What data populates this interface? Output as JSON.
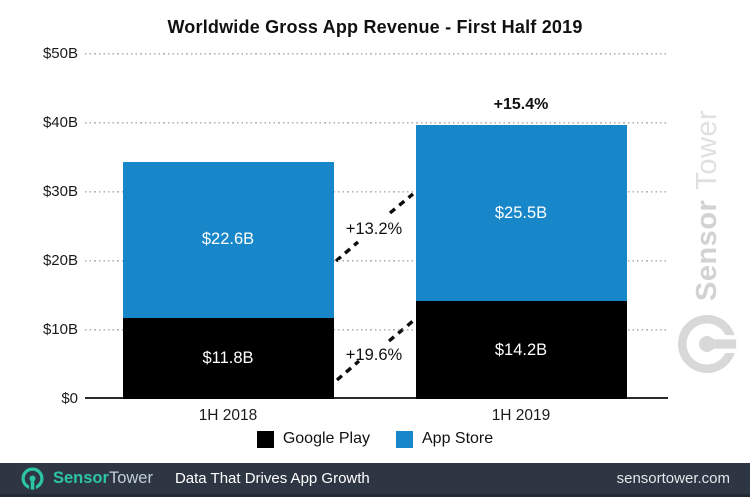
{
  "title": "Worldwide Gross App Revenue - First Half 2019",
  "chart_data": {
    "type": "bar",
    "stacked": true,
    "title": "Worldwide Gross App Revenue - First Half 2019",
    "categories": [
      "1H 2018",
      "1H 2019"
    ],
    "series": [
      {
        "name": "Google Play",
        "color": "#000000",
        "values": [
          11.8,
          14.2
        ],
        "labels": [
          "$11.8B",
          "$14.2B"
        ]
      },
      {
        "name": "App Store",
        "color": "#1787c9",
        "values": [
          22.6,
          25.5
        ],
        "labels": [
          "$22.6B",
          "$25.5B"
        ]
      }
    ],
    "totals": [
      34.4,
      39.7
    ],
    "total_growth_label": "+15.4%",
    "segment_growth_labels": [
      {
        "series": "App Store",
        "label": "+13.2%"
      },
      {
        "series": "Google Play",
        "label": "+19.6%"
      }
    ],
    "y_ticks": [
      "$50B",
      "$40B",
      "$30B",
      "$20B",
      "$10B",
      "$0"
    ],
    "y_tick_values": [
      50,
      40,
      30,
      20,
      10,
      0
    ],
    "ylim": [
      0,
      50
    ],
    "ylabel": "",
    "xlabel": "",
    "grid": "dotted horizontal",
    "legend_position": "bottom"
  },
  "legend": {
    "items": [
      {
        "label": "Google Play",
        "color": "#000000"
      },
      {
        "label": "App Store",
        "color": "#1787c9"
      }
    ]
  },
  "watermark": {
    "sensor": "Sensor",
    "tower": "Tower"
  },
  "footer": {
    "brand_sensor": "Sensor",
    "brand_tower": "Tower",
    "tagline": "Data That Drives App Growth",
    "url": "sensortower.com",
    "background": "#2d3642",
    "accent": "#2cc5a4"
  }
}
